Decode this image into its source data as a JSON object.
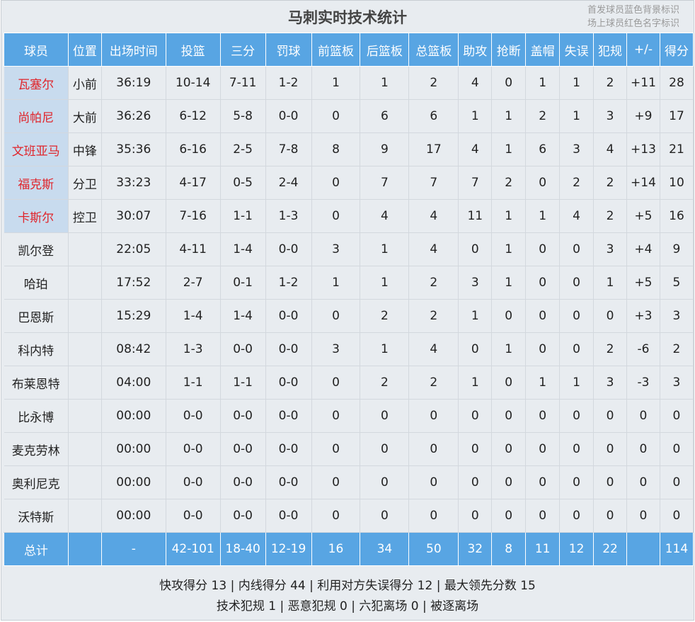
{
  "title": "马刺实时技术统计",
  "legend": [
    "首发球员蓝色背景标识",
    "场上球员红色名字标识"
  ],
  "colors": {
    "header": "#58a5e3",
    "starter_bg": "#c8dbee",
    "on_court_name": "#e0242a"
  },
  "columns": [
    "球员",
    "位置",
    "出场时间",
    "投篮",
    "三分",
    "罚球",
    "前篮板",
    "后篮板",
    "总篮板",
    "助攻",
    "抢断",
    "盖帽",
    "失误",
    "犯规",
    "+/-",
    "得分"
  ],
  "players": [
    {
      "starter": true,
      "on_court": true,
      "cells": [
        "瓦塞尔",
        "小前",
        "36:19",
        "10-14",
        "7-11",
        "1-2",
        "1",
        "1",
        "2",
        "4",
        "0",
        "1",
        "1",
        "2",
        "+11",
        "28"
      ]
    },
    {
      "starter": true,
      "on_court": true,
      "cells": [
        "尚帕尼",
        "大前",
        "36:26",
        "6-12",
        "5-8",
        "0-0",
        "0",
        "6",
        "6",
        "1",
        "1",
        "2",
        "1",
        "3",
        "+9",
        "17"
      ]
    },
    {
      "starter": true,
      "on_court": true,
      "cells": [
        "文班亚马",
        "中锋",
        "35:36",
        "6-16",
        "2-5",
        "7-8",
        "8",
        "9",
        "17",
        "4",
        "1",
        "6",
        "3",
        "4",
        "+13",
        "21"
      ]
    },
    {
      "starter": true,
      "on_court": true,
      "cells": [
        "福克斯",
        "分卫",
        "33:23",
        "4-17",
        "0-5",
        "2-4",
        "0",
        "7",
        "7",
        "7",
        "2",
        "0",
        "2",
        "2",
        "+14",
        "10"
      ]
    },
    {
      "starter": true,
      "on_court": true,
      "cells": [
        "卡斯尔",
        "控卫",
        "30:07",
        "7-16",
        "1-1",
        "1-3",
        "0",
        "4",
        "4",
        "11",
        "1",
        "1",
        "4",
        "2",
        "+5",
        "16"
      ]
    },
    {
      "starter": false,
      "on_court": false,
      "cells": [
        "凯尔登",
        "",
        "22:05",
        "4-11",
        "1-4",
        "0-0",
        "3",
        "1",
        "4",
        "0",
        "1",
        "0",
        "0",
        "3",
        "+4",
        "9"
      ]
    },
    {
      "starter": false,
      "on_court": false,
      "cells": [
        "哈珀",
        "",
        "17:52",
        "2-7",
        "0-1",
        "1-2",
        "1",
        "1",
        "2",
        "3",
        "1",
        "0",
        "0",
        "1",
        "+5",
        "5"
      ]
    },
    {
      "starter": false,
      "on_court": false,
      "cells": [
        "巴恩斯",
        "",
        "15:29",
        "1-4",
        "1-4",
        "0-0",
        "0",
        "2",
        "2",
        "1",
        "0",
        "0",
        "0",
        "0",
        "+3",
        "3"
      ]
    },
    {
      "starter": false,
      "on_court": false,
      "cells": [
        "科内特",
        "",
        "08:42",
        "1-3",
        "0-0",
        "0-0",
        "3",
        "1",
        "4",
        "0",
        "1",
        "0",
        "0",
        "2",
        "-6",
        "2"
      ]
    },
    {
      "starter": false,
      "on_court": false,
      "cells": [
        "布莱恩特",
        "",
        "04:00",
        "1-1",
        "1-1",
        "0-0",
        "0",
        "2",
        "2",
        "1",
        "0",
        "1",
        "1",
        "3",
        "-3",
        "3"
      ]
    },
    {
      "starter": false,
      "on_court": false,
      "cells": [
        "比永博",
        "",
        "00:00",
        "0-0",
        "0-0",
        "0-0",
        "0",
        "0",
        "0",
        "0",
        "0",
        "0",
        "0",
        "0",
        "0",
        "0"
      ]
    },
    {
      "starter": false,
      "on_court": false,
      "cells": [
        "麦克劳林",
        "",
        "00:00",
        "0-0",
        "0-0",
        "0-0",
        "0",
        "0",
        "0",
        "0",
        "0",
        "0",
        "0",
        "0",
        "0",
        "0"
      ]
    },
    {
      "starter": false,
      "on_court": false,
      "cells": [
        "奥利尼克",
        "",
        "00:00",
        "0-0",
        "0-0",
        "0-0",
        "0",
        "0",
        "0",
        "0",
        "0",
        "0",
        "0",
        "0",
        "0",
        "0"
      ]
    },
    {
      "starter": false,
      "on_court": false,
      "cells": [
        "沃特斯",
        "",
        "00:00",
        "0-0",
        "0-0",
        "0-0",
        "0",
        "0",
        "0",
        "0",
        "0",
        "0",
        "0",
        "0",
        "0",
        "0"
      ]
    }
  ],
  "totals": [
    "总计",
    "",
    "-",
    "42-101",
    "18-40",
    "12-19",
    "16",
    "34",
    "50",
    "32",
    "8",
    "11",
    "12",
    "22",
    "",
    "114"
  ],
  "footer": [
    "快攻得分 13 | 内线得分 44 | 利用对方失误得分 12 | 最大领先分数 15",
    "技术犯规 1 | 恶意犯规 0 | 六犯离场 0 | 被逐离场"
  ]
}
